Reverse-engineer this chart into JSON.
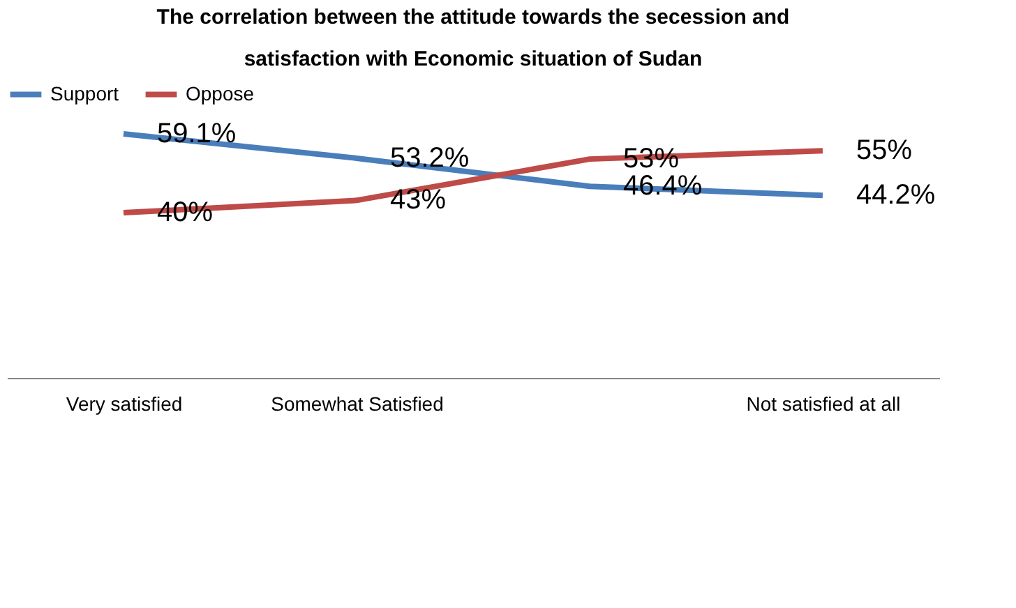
{
  "chart_data": {
    "type": "line",
    "title": [
      "The correlation between the attitude towards the secession  and",
      "satisfaction with Economic situation of Sudan"
    ],
    "categories": [
      "Very satisfied",
      "Somewhat Satisfied",
      null,
      "Not satisfied at all"
    ],
    "series": [
      {
        "name": "Support",
        "color": "#4a7ebb",
        "values": [
          59.1,
          53.2,
          46.4,
          44.2
        ],
        "value_labels": [
          "59.1%",
          "53.2%",
          "46.4%",
          "44.2%"
        ]
      },
      {
        "name": "Oppose",
        "color": "#be4b48",
        "values": [
          40,
          43,
          53,
          55
        ],
        "value_labels": [
          "40%",
          "43%",
          "53%",
          "55%"
        ]
      }
    ],
    "legend": "top",
    "marker": "none"
  }
}
